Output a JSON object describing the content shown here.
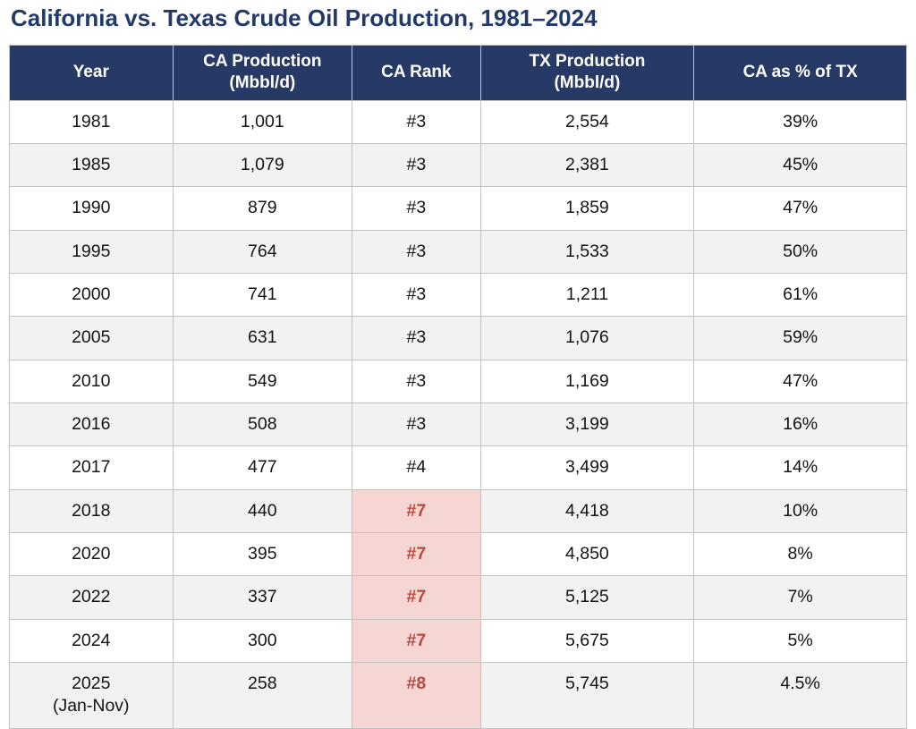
{
  "title": "California vs. Texas Crude Oil Production, 1981–2024",
  "colors": {
    "title_text": "#213A6B",
    "header_bg": "#273A66",
    "header_text": "#FFFFFF",
    "row_stripe": "#F2F2F2",
    "border": "#C2C2C2",
    "rank_highlight_bg": "#F5D6D3",
    "rank_highlight_text": "#B84A42"
  },
  "table": {
    "headers": [
      "Year",
      "CA Production\n(Mbbl/d)",
      "CA Rank",
      "TX Production\n(Mbbl/d)",
      "CA as % of TX"
    ],
    "rows": [
      {
        "year": "1981",
        "ca": "1,001",
        "rank": "#3",
        "tx": "2,554",
        "pct": "39%",
        "rank_highlight": false
      },
      {
        "year": "1985",
        "ca": "1,079",
        "rank": "#3",
        "tx": "2,381",
        "pct": "45%",
        "rank_highlight": false
      },
      {
        "year": "1990",
        "ca": "879",
        "rank": "#3",
        "tx": "1,859",
        "pct": "47%",
        "rank_highlight": false
      },
      {
        "year": "1995",
        "ca": "764",
        "rank": "#3",
        "tx": "1,533",
        "pct": "50%",
        "rank_highlight": false
      },
      {
        "year": "2000",
        "ca": "741",
        "rank": "#3",
        "tx": "1,211",
        "pct": "61%",
        "rank_highlight": false
      },
      {
        "year": "2005",
        "ca": "631",
        "rank": "#3",
        "tx": "1,076",
        "pct": "59%",
        "rank_highlight": false
      },
      {
        "year": "2010",
        "ca": "549",
        "rank": "#3",
        "tx": "1,169",
        "pct": "47%",
        "rank_highlight": false
      },
      {
        "year": "2016",
        "ca": "508",
        "rank": "#3",
        "tx": "3,199",
        "pct": "16%",
        "rank_highlight": false
      },
      {
        "year": "2017",
        "ca": "477",
        "rank": "#4",
        "tx": "3,499",
        "pct": "14%",
        "rank_highlight": false
      },
      {
        "year": "2018",
        "ca": "440",
        "rank": "#7",
        "tx": "4,418",
        "pct": "10%",
        "rank_highlight": true
      },
      {
        "year": "2020",
        "ca": "395",
        "rank": "#7",
        "tx": "4,850",
        "pct": "8%",
        "rank_highlight": true
      },
      {
        "year": "2022",
        "ca": "337",
        "rank": "#7",
        "tx": "5,125",
        "pct": "7%",
        "rank_highlight": true
      },
      {
        "year": "2024",
        "ca": "300",
        "rank": "#7",
        "tx": "5,675",
        "pct": "5%",
        "rank_highlight": true
      },
      {
        "year": "2025\n(Jan-Nov)",
        "ca": "258",
        "rank": "#8",
        "tx": "5,745",
        "pct": "4.5%",
        "rank_highlight": true
      }
    ]
  },
  "chart_data": {
    "type": "table",
    "title": "California vs. Texas Crude Oil Production, 1981–2024",
    "columns": [
      "Year",
      "CA Production (Mbbl/d)",
      "CA Rank",
      "TX Production (Mbbl/d)",
      "CA as % of TX"
    ],
    "rows": [
      [
        "1981",
        1001,
        "#3",
        2554,
        "39%"
      ],
      [
        "1985",
        1079,
        "#3",
        2381,
        "45%"
      ],
      [
        "1990",
        879,
        "#3",
        1859,
        "47%"
      ],
      [
        "1995",
        764,
        "#3",
        1533,
        "50%"
      ],
      [
        "2000",
        741,
        "#3",
        1211,
        "61%"
      ],
      [
        "2005",
        631,
        "#3",
        1076,
        "59%"
      ],
      [
        "2010",
        549,
        "#3",
        1169,
        "47%"
      ],
      [
        "2016",
        508,
        "#3",
        3199,
        "16%"
      ],
      [
        "2017",
        477,
        "#4",
        3499,
        "14%"
      ],
      [
        "2018",
        440,
        "#7",
        4418,
        "10%"
      ],
      [
        "2020",
        395,
        "#7",
        4850,
        "8%"
      ],
      [
        "2022",
        337,
        "#7",
        5125,
        "7%"
      ],
      [
        "2024",
        300,
        "#7",
        5675,
        "5%"
      ],
      [
        "2025 (Jan-Nov)",
        258,
        "#8",
        5745,
        "4.5%"
      ]
    ],
    "highlighted_rank_rows": [
      "2018",
      "2020",
      "2022",
      "2024",
      "2025 (Jan-Nov)"
    ],
    "notes": "Rank cells for 2018 onward are highlighted pink with bold red text"
  }
}
